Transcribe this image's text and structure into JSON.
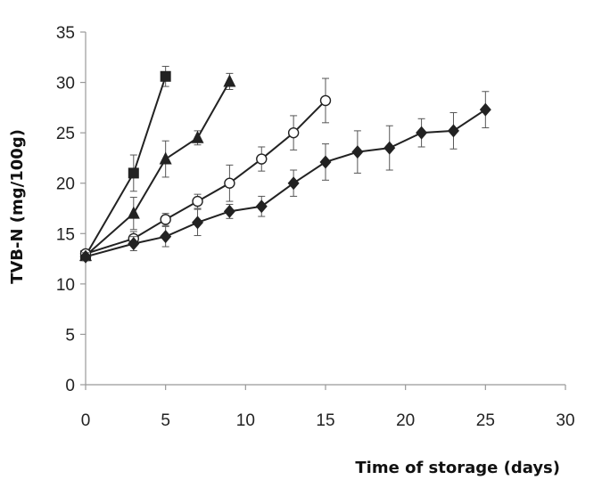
{
  "chart_data": {
    "type": "line",
    "title": "",
    "xlabel": "Time of storage  (days)",
    "ylabel": "TVB-N (mg/100g)",
    "xlim": [
      0,
      30
    ],
    "ylim": [
      0,
      35
    ],
    "x_ticks": [
      0,
      5,
      10,
      15,
      20,
      25,
      30
    ],
    "y_ticks": [
      0,
      5,
      10,
      15,
      20,
      25,
      30,
      35
    ],
    "grid": false,
    "legend": "none",
    "line_color": "#222222",
    "series": [
      {
        "marker": "square",
        "x": [
          0,
          3,
          5
        ],
        "y": [
          12.8,
          21.0,
          30.6
        ],
        "err": [
          0.4,
          1.8,
          1.0
        ]
      },
      {
        "marker": "triangle",
        "x": [
          0,
          3,
          5,
          7,
          9
        ],
        "y": [
          12.8,
          17.0,
          22.4,
          24.5,
          30.1
        ],
        "err": [
          0.4,
          1.6,
          1.8,
          0.7,
          0.8
        ]
      },
      {
        "marker": "circle-open",
        "x": [
          0,
          3,
          5,
          7,
          9,
          11,
          13,
          15
        ],
        "y": [
          13.0,
          14.5,
          16.4,
          18.2,
          20.0,
          22.4,
          25.0,
          28.2
        ],
        "err": [
          0.3,
          0.7,
          0.6,
          0.7,
          1.8,
          1.2,
          1.7,
          2.2
        ]
      },
      {
        "marker": "diamond",
        "x": [
          0,
          3,
          5,
          7,
          9,
          11,
          13,
          15,
          17,
          19,
          21,
          23,
          25
        ],
        "y": [
          12.7,
          14.0,
          14.7,
          16.1,
          17.2,
          17.7,
          20.0,
          22.1,
          23.1,
          23.5,
          25.0,
          25.2,
          27.3
        ],
        "err": [
          0.4,
          0.7,
          1.0,
          1.3,
          0.7,
          1.0,
          1.3,
          1.8,
          2.1,
          2.2,
          1.4,
          1.8,
          1.8
        ]
      }
    ]
  }
}
